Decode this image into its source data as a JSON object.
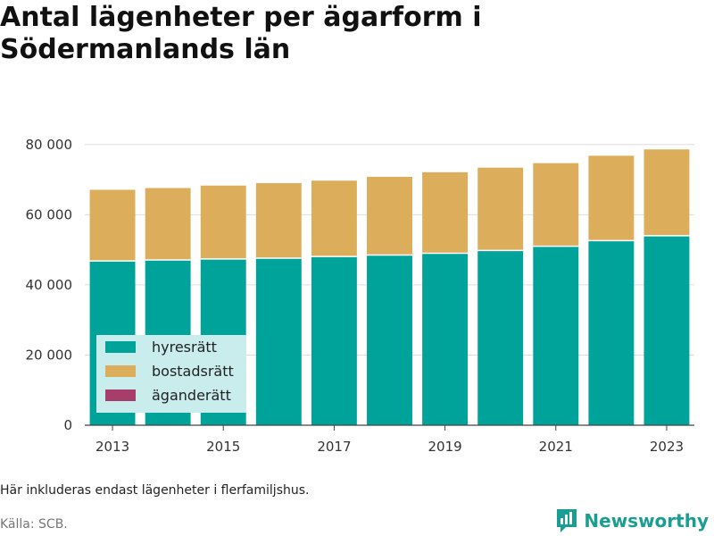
{
  "title": "Antal lägenheter per ägarform i Södermanlands län",
  "note": "Här inkluderas endast lägenheter i flerfamiljshus.",
  "source": "Källa: SCB.",
  "brand": "Newsworthy",
  "colors": {
    "hyresratt": "#00a39a",
    "bostadsratt": "#dcad5a",
    "aganderatt": "#a63d6b",
    "legend_bg": "#c9ecec",
    "brand": "#1a9e92"
  },
  "chart_data": {
    "type": "bar",
    "stacked": true,
    "categories": [
      2013,
      2014,
      2015,
      2016,
      2017,
      2018,
      2019,
      2020,
      2021,
      2022,
      2023
    ],
    "x_tick_labels": [
      "2013",
      "2015",
      "2017",
      "2019",
      "2021",
      "2023"
    ],
    "y_ticks": [
      0,
      20000,
      40000,
      60000,
      80000
    ],
    "y_tick_labels": [
      "0",
      "20 000",
      "40 000",
      "60 000",
      "80 000"
    ],
    "ylim": [
      0,
      83000
    ],
    "grid": true,
    "legend_position": "bottom-left",
    "series": [
      {
        "name": "hyresrätt",
        "color": "#00a39a",
        "values": [
          46800,
          47100,
          47400,
          47600,
          48100,
          48500,
          49000,
          49800,
          51000,
          52600,
          54000
        ]
      },
      {
        "name": "bostadsrätt",
        "color": "#dcad5a",
        "values": [
          20300,
          20500,
          20900,
          21400,
          21600,
          22300,
          23100,
          23600,
          23700,
          24200,
          24600
        ]
      },
      {
        "name": "äganderätt",
        "color": "#a63d6b",
        "values": [
          0,
          0,
          0,
          0,
          0,
          0,
          0,
          0,
          0,
          0,
          0
        ]
      }
    ]
  }
}
